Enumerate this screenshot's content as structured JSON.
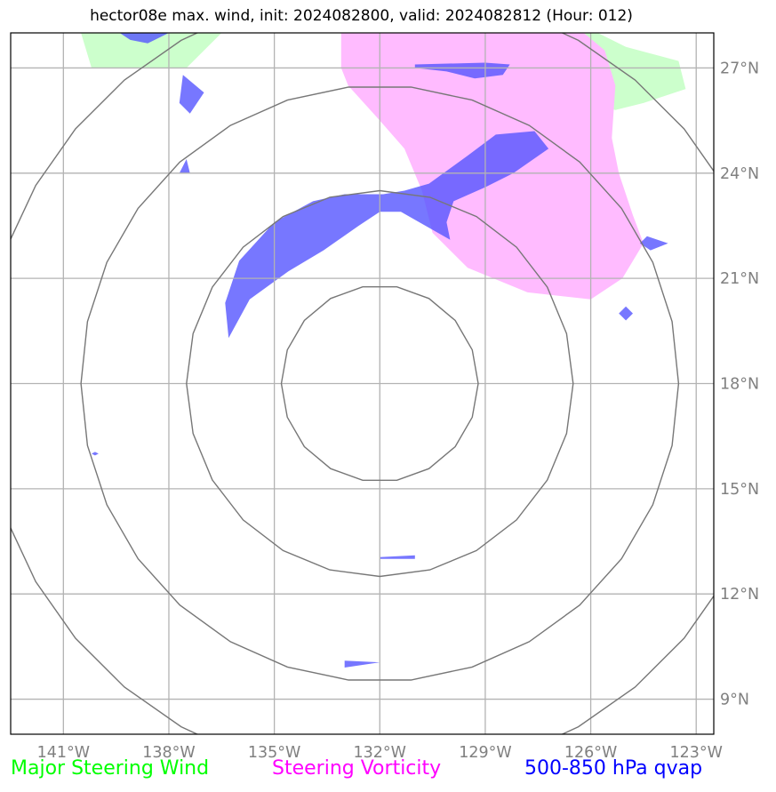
{
  "chart_data": {
    "type": "map",
    "title": "hector08e max. wind, init: 2024082800, valid: 2024082812 (Hour: 012)",
    "storm_center": {
      "lon": -132.0,
      "lat": 18.0
    },
    "xlim": [
      -142.5,
      -122.5
    ],
    "ylim": [
      8.0,
      28.0
    ],
    "grid": true,
    "x_ticks": [
      -141,
      -138,
      -135,
      -132,
      -129,
      -126,
      -123
    ],
    "x_tick_labels": [
      "141°W",
      "138°W",
      "135°W",
      "132°W",
      "129°W",
      "126°W",
      "123°W"
    ],
    "y_ticks": [
      9,
      12,
      15,
      18,
      21,
      24,
      27
    ],
    "y_tick_labels": [
      "9°N",
      "12°N",
      "15°N",
      "18°N",
      "21°N",
      "24°N",
      "27°N"
    ],
    "range_ring_radii_deg": [
      2.8,
      5.5,
      8.5,
      11.3
    ],
    "legend": [
      {
        "label": "Major Steering Wind",
        "color": "#00ff00"
      },
      {
        "label": "Steering Vorticity",
        "color": "#ff00ff"
      },
      {
        "label": "500-850 hPa qvap",
        "color": "#0000ff"
      }
    ],
    "layers": {
      "steering_wind": {
        "color": "#ccffcc",
        "polygons": [
          [
            [
              -140.5,
              28.0
            ],
            [
              -138.8,
              28.0
            ],
            [
              -136.5,
              28.0
            ],
            [
              -137.5,
              27.0
            ],
            [
              -139.5,
              27.0
            ],
            [
              -140.2,
              27.0
            ]
          ],
          [
            [
              -129.5,
              28.0
            ],
            [
              -125.8,
              28.0
            ],
            [
              -125.0,
              27.6
            ],
            [
              -123.5,
              27.2
            ],
            [
              -123.3,
              26.4
            ],
            [
              -124.5,
              26.0
            ],
            [
              -125.3,
              25.8
            ],
            [
              -126.0,
              26.0
            ],
            [
              -127.5,
              25.8
            ],
            [
              -128.5,
              26.2
            ],
            [
              -129.5,
              27.0
            ]
          ]
        ]
      },
      "steering_vorticity": {
        "color": "#ffbbff",
        "polygons": [
          [
            [
              -133.1,
              28.0
            ],
            [
              -126.2,
              28.0
            ],
            [
              -125.6,
              27.5
            ],
            [
              -125.3,
              26.5
            ],
            [
              -125.4,
              25.0
            ],
            [
              -125.2,
              24.0
            ],
            [
              -124.8,
              22.8
            ],
            [
              -124.5,
              22.0
            ],
            [
              -125.1,
              21.0
            ],
            [
              -126.0,
              20.4
            ],
            [
              -127.8,
              20.6
            ],
            [
              -129.5,
              21.3
            ],
            [
              -130.5,
              22.3
            ],
            [
              -130.8,
              23.5
            ],
            [
              -131.3,
              24.7
            ],
            [
              -132.0,
              25.5
            ],
            [
              -132.9,
              26.5
            ],
            [
              -133.1,
              27.0
            ]
          ]
        ]
      },
      "qvap": {
        "color": "#5555ff",
        "polygons": [
          [
            [
              -139.4,
              28.0
            ],
            [
              -138.0,
              28.0
            ],
            [
              -138.6,
              27.7
            ],
            [
              -139.1,
              27.8
            ]
          ],
          [
            [
              -137.6,
              26.8
            ],
            [
              -137.0,
              26.3
            ],
            [
              -137.4,
              25.7
            ],
            [
              -137.7,
              26.0
            ]
          ],
          [
            [
              -137.5,
              24.4
            ],
            [
              -137.4,
              24.0
            ],
            [
              -137.7,
              24.0
            ]
          ],
          [
            [
              -136.0,
              21.5
            ],
            [
              -135.0,
              22.6
            ],
            [
              -133.9,
              23.2
            ],
            [
              -133.0,
              23.4
            ],
            [
              -131.9,
              23.4
            ],
            [
              -131.3,
              23.5
            ],
            [
              -130.6,
              23.7
            ],
            [
              -129.5,
              24.5
            ],
            [
              -128.7,
              25.1
            ],
            [
              -127.6,
              25.2
            ],
            [
              -127.2,
              24.7
            ],
            [
              -128.2,
              24.0
            ],
            [
              -129.0,
              23.6
            ],
            [
              -129.9,
              23.2
            ],
            [
              -130.1,
              22.6
            ],
            [
              -130.0,
              22.1
            ],
            [
              -130.7,
              22.5
            ],
            [
              -131.4,
              22.9
            ],
            [
              -132.0,
              22.9
            ],
            [
              -132.6,
              22.5
            ],
            [
              -133.6,
              21.8
            ],
            [
              -134.6,
              21.2
            ],
            [
              -135.7,
              20.4
            ],
            [
              -136.3,
              19.3
            ],
            [
              -136.4,
              20.3
            ]
          ],
          [
            [
              -131.0,
              27.1
            ],
            [
              -129.0,
              27.15
            ],
            [
              -128.3,
              27.1
            ],
            [
              -128.5,
              26.8
            ],
            [
              -129.3,
              26.7
            ],
            [
              -130.1,
              26.9
            ],
            [
              -131.0,
              27.0
            ]
          ],
          [
            [
              -124.4,
              22.2
            ],
            [
              -123.8,
              22.0
            ],
            [
              -124.3,
              21.8
            ],
            [
              -124.6,
              22.0
            ]
          ],
          [
            [
              -125.0,
              20.2
            ],
            [
              -124.8,
              20.0
            ],
            [
              -125.0,
              19.8
            ],
            [
              -125.2,
              20.0
            ]
          ],
          [
            [
              -140.1,
              16.05
            ],
            [
              -140.0,
              16.0
            ],
            [
              -140.1,
              15.95
            ],
            [
              -140.2,
              16.0
            ]
          ],
          [
            [
              -132.0,
              13.05
            ],
            [
              -131.0,
              13.1
            ],
            [
              -131.0,
              13.0
            ],
            [
              -132.0,
              13.0
            ]
          ],
          [
            [
              -133.0,
              10.1
            ],
            [
              -132.0,
              10.05
            ],
            [
              -133.0,
              9.9
            ]
          ]
        ]
      }
    }
  }
}
